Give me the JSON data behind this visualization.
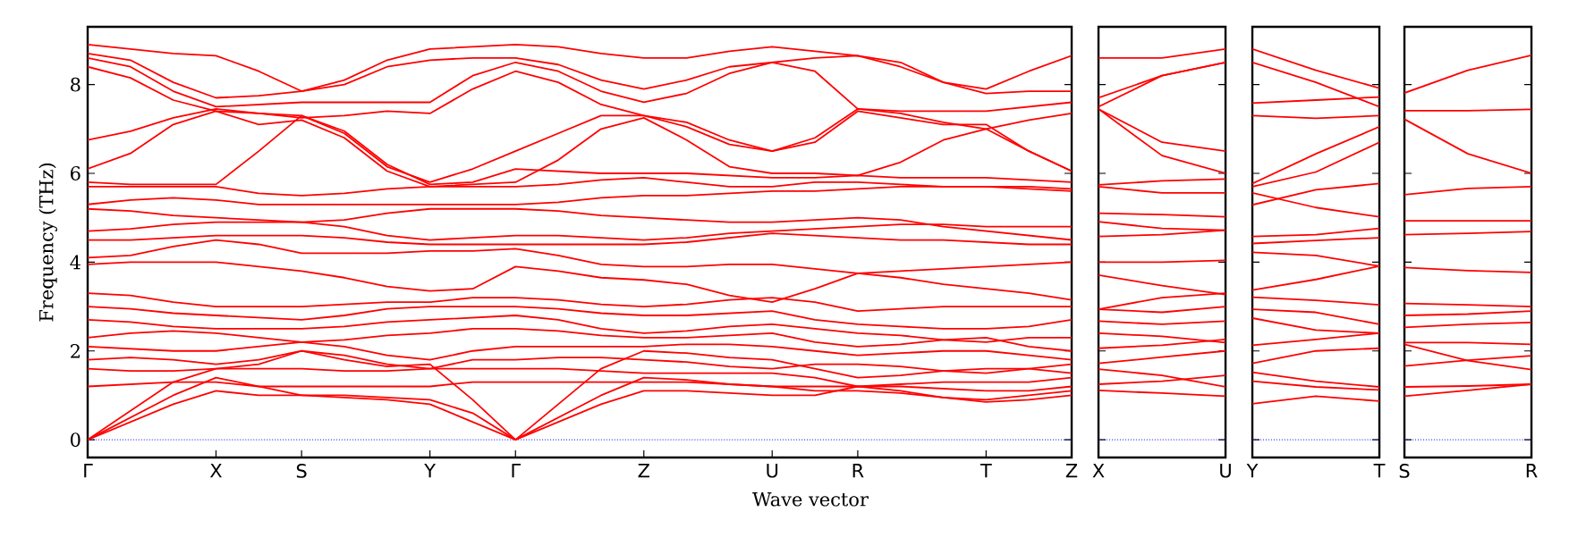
{
  "chart_data": [
    {
      "type": "line",
      "xlabel": "Wave vector",
      "ylabel": "Frequency (THz)",
      "marker": "none",
      "categories": [
        "Γ",
        null,
        null,
        "X",
        null,
        "S",
        null,
        null,
        "Y",
        null,
        "Γ",
        null,
        null,
        "Z",
        null,
        null,
        "U",
        null,
        "R",
        null,
        null,
        "T",
        null,
        "Z"
      ],
      "ylim": [
        -0.4,
        9.3
      ],
      "yticks": [
        0,
        2,
        4,
        6,
        8
      ],
      "ref_lines": [
        {
          "axis": "y",
          "value": 0,
          "color": "#0000ff",
          "line_style": "dotted"
        }
      ],
      "series": [
        {
          "color": "#ff0000",
          "values": [
            8.9,
            8.8,
            8.7,
            8.65,
            8.3,
            7.85,
            8.1,
            8.55,
            8.8,
            8.85,
            8.9,
            8.85,
            8.7,
            8.6,
            8.6,
            8.75,
            8.85,
            8.75,
            8.65,
            8.4,
            8.05,
            7.9,
            8.3,
            8.65
          ]
        },
        {
          "color": "#ff0000",
          "values": [
            8.7,
            8.55,
            8.05,
            7.7,
            7.75,
            7.85,
            8.0,
            8.4,
            8.55,
            8.6,
            8.6,
            8.45,
            8.1,
            7.9,
            8.1,
            8.4,
            8.5,
            8.6,
            8.65,
            8.5,
            8.05,
            7.8,
            7.85,
            7.85
          ]
        },
        {
          "color": "#ff0000",
          "values": [
            8.6,
            8.4,
            7.85,
            7.5,
            7.55,
            7.6,
            7.6,
            7.6,
            7.6,
            8.2,
            8.5,
            8.3,
            7.85,
            7.6,
            7.8,
            8.25,
            8.5,
            8.3,
            7.45,
            7.4,
            7.4,
            7.4,
            7.5,
            7.6
          ]
        },
        {
          "color": "#ff0000",
          "values": [
            8.4,
            8.15,
            7.65,
            7.4,
            7.35,
            7.25,
            7.3,
            7.4,
            7.35,
            7.9,
            8.3,
            8.05,
            7.55,
            7.3,
            7.15,
            6.75,
            6.5,
            6.7,
            7.4,
            7.25,
            7.1,
            7.1,
            6.5,
            6.05
          ]
        },
        {
          "color": "#ff0000",
          "values": [
            6.75,
            6.95,
            7.25,
            7.45,
            7.35,
            7.3,
            6.9,
            6.15,
            5.8,
            6.1,
            6.5,
            6.9,
            7.3,
            7.3,
            7.05,
            6.65,
            6.5,
            6.8,
            7.45,
            7.35,
            7.15,
            7.0,
            6.5,
            6.05
          ]
        },
        {
          "color": "#ff0000",
          "values": [
            6.1,
            6.45,
            7.1,
            7.4,
            7.1,
            7.2,
            6.8,
            6.05,
            5.7,
            5.75,
            5.8,
            6.3,
            7.0,
            7.25,
            6.75,
            6.15,
            6.0,
            6.0,
            5.95,
            6.25,
            6.75,
            7.0,
            7.2,
            7.35
          ]
        },
        {
          "color": "#ff0000",
          "values": [
            5.8,
            5.75,
            5.75,
            5.75,
            6.5,
            7.3,
            6.95,
            6.2,
            5.75,
            5.8,
            6.1,
            6.05,
            6.0,
            6.0,
            6.0,
            5.95,
            5.9,
            5.9,
            5.95,
            5.9,
            5.9,
            5.9,
            5.85,
            5.8
          ]
        },
        {
          "color": "#ff0000",
          "values": [
            5.7,
            5.7,
            5.7,
            5.7,
            5.55,
            5.5,
            5.55,
            5.65,
            5.7,
            5.7,
            5.7,
            5.75,
            5.85,
            5.9,
            5.8,
            5.7,
            5.7,
            5.8,
            5.8,
            5.75,
            5.7,
            5.7,
            5.7,
            5.65
          ]
        },
        {
          "color": "#ff0000",
          "values": [
            5.3,
            5.4,
            5.45,
            5.4,
            5.3,
            5.3,
            5.3,
            5.3,
            5.3,
            5.3,
            5.3,
            5.35,
            5.45,
            5.5,
            5.5,
            5.55,
            5.6,
            5.6,
            5.65,
            5.7,
            5.7,
            5.7,
            5.65,
            5.6
          ]
        },
        {
          "color": "#ff0000",
          "values": [
            5.2,
            5.15,
            5.05,
            5.0,
            4.95,
            4.9,
            4.95,
            5.1,
            5.2,
            5.2,
            5.2,
            5.15,
            5.05,
            5.0,
            4.95,
            4.9,
            4.9,
            4.95,
            5.0,
            4.95,
            4.8,
            4.7,
            4.6,
            4.5
          ]
        },
        {
          "color": "#ff0000",
          "values": [
            4.7,
            4.75,
            4.85,
            4.9,
            4.9,
            4.9,
            4.8,
            4.6,
            4.5,
            4.55,
            4.6,
            4.6,
            4.55,
            4.5,
            4.55,
            4.65,
            4.7,
            4.75,
            4.8,
            4.85,
            4.85,
            4.8,
            4.8,
            4.8
          ]
        },
        {
          "color": "#ff0000",
          "values": [
            4.5,
            4.5,
            4.55,
            4.6,
            4.6,
            4.6,
            4.55,
            4.45,
            4.4,
            4.4,
            4.4,
            4.4,
            4.4,
            4.4,
            4.45,
            4.55,
            4.65,
            4.6,
            4.55,
            4.5,
            4.5,
            4.45,
            4.4,
            4.4
          ]
        },
        {
          "color": "#ff0000",
          "values": [
            4.1,
            4.15,
            4.35,
            4.5,
            4.4,
            4.2,
            4.2,
            4.2,
            4.25,
            4.25,
            4.3,
            4.15,
            3.95,
            3.9,
            3.9,
            3.95,
            3.95,
            3.85,
            3.75,
            3.8,
            3.85,
            3.9,
            3.95,
            4.0
          ]
        },
        {
          "color": "#ff0000",
          "values": [
            3.95,
            4.0,
            4.0,
            4.0,
            3.9,
            3.8,
            3.65,
            3.45,
            3.35,
            3.4,
            3.9,
            3.8,
            3.65,
            3.6,
            3.5,
            3.25,
            3.1,
            3.4,
            3.75,
            3.65,
            3.5,
            3.4,
            3.3,
            3.15
          ]
        },
        {
          "color": "#ff0000",
          "values": [
            3.3,
            3.25,
            3.1,
            3.0,
            3.0,
            3.0,
            3.05,
            3.1,
            3.1,
            3.2,
            3.2,
            3.15,
            3.05,
            3.0,
            3.05,
            3.15,
            3.2,
            3.1,
            2.9,
            2.95,
            3.0,
            3.0,
            3.0,
            3.0
          ]
        },
        {
          "color": "#ff0000",
          "values": [
            3.0,
            2.95,
            2.85,
            2.8,
            2.75,
            2.7,
            2.8,
            2.95,
            3.0,
            3.0,
            3.0,
            2.95,
            2.85,
            2.8,
            2.8,
            2.85,
            2.9,
            2.7,
            2.6,
            2.55,
            2.5,
            2.5,
            2.55,
            2.7
          ]
        },
        {
          "color": "#ff0000",
          "values": [
            2.7,
            2.65,
            2.55,
            2.5,
            2.5,
            2.5,
            2.55,
            2.65,
            2.7,
            2.75,
            2.8,
            2.7,
            2.5,
            2.4,
            2.45,
            2.55,
            2.6,
            2.5,
            2.4,
            2.35,
            2.25,
            2.2,
            2.3,
            2.3
          ]
        },
        {
          "color": "#ff0000",
          "values": [
            2.3,
            2.4,
            2.45,
            2.4,
            2.3,
            2.2,
            2.25,
            2.35,
            2.4,
            2.5,
            2.5,
            2.45,
            2.35,
            2.3,
            2.3,
            2.35,
            2.4,
            2.2,
            2.1,
            2.15,
            2.25,
            2.3,
            2.1,
            2.0
          ]
        },
        {
          "color": "#ff0000",
          "values": [
            2.1,
            2.05,
            2.0,
            2.0,
            2.1,
            2.2,
            2.1,
            1.9,
            1.8,
            2.0,
            2.1,
            2.1,
            2.1,
            2.1,
            2.15,
            2.15,
            2.1,
            2.0,
            1.9,
            1.95,
            2.0,
            2.0,
            1.9,
            1.8
          ]
        },
        {
          "color": "#ff0000",
          "values": [
            1.8,
            1.85,
            1.8,
            1.7,
            1.8,
            2.0,
            1.9,
            1.7,
            1.6,
            1.8,
            1.8,
            1.85,
            1.85,
            1.8,
            1.75,
            1.65,
            1.6,
            1.7,
            1.7,
            1.65,
            1.55,
            1.5,
            1.6,
            1.7
          ]
        },
        {
          "color": "#ff0000",
          "values": [
            1.6,
            1.55,
            1.55,
            1.6,
            1.6,
            1.6,
            1.55,
            1.55,
            1.6,
            1.6,
            1.6,
            1.6,
            1.55,
            1.5,
            1.5,
            1.5,
            1.5,
            1.4,
            1.2,
            1.25,
            1.3,
            1.3,
            1.3,
            1.4
          ]
        },
        {
          "color": "#ff0000",
          "values": [
            1.2,
            1.25,
            1.3,
            1.3,
            1.2,
            1.2,
            1.2,
            1.2,
            1.2,
            1.3,
            1.3,
            1.3,
            1.3,
            1.3,
            1.3,
            1.25,
            1.2,
            1.2,
            1.2,
            1.2,
            1.15,
            1.1,
            1.1,
            1.2
          ]
        },
        {
          "color": "#ff0000",
          "values": [
            0,
            0.5,
            1.0,
            1.4,
            1.2,
            1.0,
            1.0,
            0.95,
            0.9,
            0.6,
            0,
            0.5,
            1.0,
            1.4,
            1.35,
            1.25,
            1.2,
            1.1,
            1.1,
            1.05,
            0.95,
            0.85,
            0.9,
            1.0
          ]
        },
        {
          "color": "#ff0000",
          "values": [
            0,
            0.4,
            0.8,
            1.1,
            1.0,
            1.0,
            0.95,
            0.9,
            0.8,
            0.4,
            0,
            0.4,
            0.8,
            1.1,
            1.1,
            1.05,
            1.0,
            1.0,
            1.2,
            1.1,
            0.95,
            0.9,
            1.0,
            1.1
          ]
        },
        {
          "color": "#ff0000",
          "values": [
            0,
            0.65,
            1.3,
            1.6,
            1.7,
            2.0,
            1.8,
            1.65,
            1.7,
            0.9,
            0,
            0.8,
            1.6,
            2.0,
            1.95,
            1.85,
            1.8,
            1.6,
            1.4,
            1.45,
            1.55,
            1.6,
            1.6,
            1.5
          ]
        }
      ]
    },
    {
      "type": "line",
      "marker": "none",
      "tick_labels": "x",
      "categories": [
        "X",
        null,
        "U"
      ],
      "ylim": [
        -0.4,
        9.3
      ],
      "yticks": [
        0,
        2,
        4,
        6,
        8
      ],
      "ref_lines": [
        {
          "axis": "y",
          "value": 0,
          "color": "#0000ff",
          "line_style": "dotted"
        }
      ],
      "series": [
        {
          "color": "#ff0000",
          "values": [
            8.6,
            8.6,
            8.8
          ]
        },
        {
          "color": "#ff0000",
          "values": [
            7.7,
            8.2,
            8.5
          ]
        },
        {
          "color": "#ff0000",
          "values": [
            7.5,
            8.2,
            8.5
          ]
        },
        {
          "color": "#ff0000",
          "values": [
            7.45,
            6.7,
            6.5
          ]
        },
        {
          "color": "#ff0000",
          "values": [
            7.45,
            6.4,
            6.0
          ]
        },
        {
          "color": "#ff0000",
          "values": [
            5.74,
            5.83,
            5.87
          ]
        },
        {
          "color": "#ff0000",
          "values": [
            5.7,
            5.56,
            5.56
          ]
        },
        {
          "color": "#ff0000",
          "values": [
            5.1,
            5.07,
            5.02
          ]
        },
        {
          "color": "#ff0000",
          "values": [
            4.91,
            4.76,
            4.72
          ]
        },
        {
          "color": "#ff0000",
          "values": [
            4.58,
            4.62,
            4.72
          ]
        },
        {
          "color": "#ff0000",
          "values": [
            4.0,
            4.0,
            4.04
          ]
        },
        {
          "color": "#ff0000",
          "values": [
            3.71,
            3.47,
            3.27
          ]
        },
        {
          "color": "#ff0000",
          "values": [
            2.94,
            3.2,
            3.3
          ]
        },
        {
          "color": "#ff0000",
          "values": [
            2.94,
            2.87,
            3.0
          ]
        },
        {
          "color": "#ff0000",
          "values": [
            2.67,
            2.6,
            2.67
          ]
        },
        {
          "color": "#ff0000",
          "values": [
            2.4,
            2.33,
            2.19
          ]
        },
        {
          "color": "#ff0000",
          "values": [
            2.06,
            2.13,
            2.26
          ]
        },
        {
          "color": "#ff0000",
          "values": [
            1.72,
            1.86,
            2.0
          ]
        },
        {
          "color": "#ff0000",
          "values": [
            1.59,
            1.45,
            1.19
          ]
        },
        {
          "color": "#ff0000",
          "values": [
            1.25,
            1.32,
            1.45
          ]
        },
        {
          "color": "#ff0000",
          "values": [
            1.11,
            1.05,
            0.98
          ]
        }
      ]
    },
    {
      "type": "line",
      "marker": "none",
      "tick_labels": "x",
      "categories": [
        "Y",
        null,
        "T"
      ],
      "ylim": [
        -0.4,
        9.3
      ],
      "yticks": [
        0,
        2,
        4,
        6,
        8
      ],
      "ref_lines": [
        {
          "axis": "y",
          "value": 0,
          "color": "#0000ff",
          "line_style": "dotted"
        }
      ],
      "series": [
        {
          "color": "#ff0000",
          "values": [
            8.8,
            8.32,
            7.92
          ]
        },
        {
          "color": "#ff0000",
          "values": [
            8.5,
            8.05,
            7.5
          ]
        },
        {
          "color": "#ff0000",
          "values": [
            7.58,
            7.65,
            7.72
          ]
        },
        {
          "color": "#ff0000",
          "values": [
            7.3,
            7.24,
            7.3
          ]
        },
        {
          "color": "#ff0000",
          "values": [
            5.77,
            6.44,
            7.05
          ]
        },
        {
          "color": "#ff0000",
          "values": [
            5.7,
            6.03,
            6.7
          ]
        },
        {
          "color": "#ff0000",
          "values": [
            5.29,
            5.63,
            5.77
          ]
        },
        {
          "color": "#ff0000",
          "values": [
            5.56,
            5.23,
            5.02
          ]
        },
        {
          "color": "#ff0000",
          "values": [
            4.58,
            4.62,
            4.76
          ]
        },
        {
          "color": "#ff0000",
          "values": [
            4.42,
            4.49,
            4.55
          ]
        },
        {
          "color": "#ff0000",
          "values": [
            4.22,
            4.15,
            3.91
          ]
        },
        {
          "color": "#ff0000",
          "values": [
            3.37,
            3.61,
            3.91
          ]
        },
        {
          "color": "#ff0000",
          "values": [
            3.21,
            3.14,
            3.04
          ]
        },
        {
          "color": "#ff0000",
          "values": [
            2.94,
            2.87,
            2.6
          ]
        },
        {
          "color": "#ff0000",
          "values": [
            2.74,
            2.47,
            2.4
          ]
        },
        {
          "color": "#ff0000",
          "values": [
            2.13,
            2.26,
            2.4
          ]
        },
        {
          "color": "#ff0000",
          "values": [
            1.72,
            2.0,
            2.06
          ]
        },
        {
          "color": "#ff0000",
          "values": [
            1.52,
            1.32,
            1.19
          ]
        },
        {
          "color": "#ff0000",
          "values": [
            1.32,
            1.19,
            1.12
          ]
        },
        {
          "color": "#ff0000",
          "values": [
            0.81,
            0.98,
            0.87
          ]
        }
      ]
    },
    {
      "type": "line",
      "marker": "none",
      "tick_labels": "x",
      "categories": [
        "S",
        null,
        "R"
      ],
      "ylim": [
        -0.4,
        9.3
      ],
      "yticks": [
        0,
        2,
        4,
        6,
        8
      ],
      "ref_lines": [
        {
          "axis": "y",
          "value": 0,
          "color": "#0000ff",
          "line_style": "dotted"
        }
      ],
      "series": [
        {
          "color": "#ff0000",
          "values": [
            7.81,
            8.32,
            8.66
          ]
        },
        {
          "color": "#ff0000",
          "values": [
            7.41,
            7.41,
            7.44
          ]
        },
        {
          "color": "#ff0000",
          "values": [
            7.22,
            6.44,
            6.0
          ]
        },
        {
          "color": "#ff0000",
          "values": [
            5.52,
            5.66,
            5.7
          ]
        },
        {
          "color": "#ff0000",
          "values": [
            4.93,
            4.93,
            4.93
          ]
        },
        {
          "color": "#ff0000",
          "values": [
            4.62,
            4.65,
            4.69
          ]
        },
        {
          "color": "#ff0000",
          "values": [
            3.88,
            3.81,
            3.77
          ]
        },
        {
          "color": "#ff0000",
          "values": [
            3.07,
            3.04,
            3.0
          ]
        },
        {
          "color": "#ff0000",
          "values": [
            2.8,
            2.83,
            2.9
          ]
        },
        {
          "color": "#ff0000",
          "values": [
            2.53,
            2.6,
            2.64
          ]
        },
        {
          "color": "#ff0000",
          "values": [
            2.19,
            2.19,
            2.15
          ]
        },
        {
          "color": "#ff0000",
          "values": [
            2.15,
            1.78,
            1.58
          ]
        },
        {
          "color": "#ff0000",
          "values": [
            1.66,
            1.79,
            1.89
          ]
        },
        {
          "color": "#ff0000",
          "values": [
            1.19,
            1.21,
            1.25
          ]
        },
        {
          "color": "#ff0000",
          "values": [
            0.98,
            1.11,
            1.25
          ]
        }
      ]
    }
  ]
}
